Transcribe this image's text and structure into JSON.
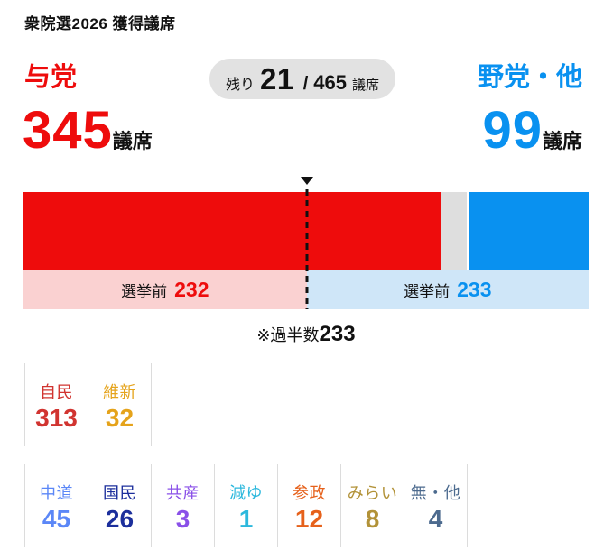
{
  "title": "衆院選2026 獲得議席",
  "header": {
    "ruling": {
      "label": "与党",
      "seats": "345",
      "unit": "議席"
    },
    "remaining": {
      "prefix": "残り",
      "value": "21",
      "separator": "/",
      "total": "465",
      "unit": "議席"
    },
    "opposition": {
      "label": "野党・他",
      "seats": "99",
      "unit": "議席"
    }
  },
  "pre_election": {
    "left": {
      "label": "選挙前",
      "value": "232"
    },
    "right": {
      "label": "選挙前",
      "value": "233"
    }
  },
  "majority_note": {
    "prefix": "※過半数",
    "value": "233"
  },
  "colors": {
    "ruling_red": "#ee0c0c",
    "opposition_blue": "#0991f0",
    "remaining_gray": "#dedede",
    "pill_bg": "#e2e2e2",
    "pre_left_bg": "#fad1d1",
    "pre_right_bg": "#cfe6f8"
  },
  "parties_row1": [
    {
      "name": "自民",
      "seats": "313",
      "color": "#d13430"
    },
    {
      "name": "維新",
      "seats": "32",
      "color": "#e5a31b"
    }
  ],
  "parties_row2": [
    {
      "name": "中道",
      "seats": "45",
      "color": "#5b87f7"
    },
    {
      "name": "国民",
      "seats": "26",
      "color": "#1c2f9c"
    },
    {
      "name": "共産",
      "seats": "3",
      "color": "#8a50e8"
    },
    {
      "name": "減ゆ",
      "seats": "1",
      "color": "#2cb8dd"
    },
    {
      "name": "参政",
      "seats": "12",
      "color": "#e6611b"
    },
    {
      "name": "みらい",
      "seats": "8",
      "color": "#b29238"
    },
    {
      "name": "無・他",
      "seats": "4",
      "color": "#4c6a8e"
    }
  ],
  "chart_data": {
    "type": "bar",
    "orientation": "horizontal-stacked",
    "title": "衆院選2026 獲得議席",
    "total_seats": 465,
    "remaining_seats": 21,
    "majority": 233,
    "segments": [
      {
        "name": "与党",
        "seats": 345,
        "color": "#ee0c0c",
        "pre_election": 232
      },
      {
        "name": "残り",
        "seats": 21,
        "color": "#dedede"
      },
      {
        "name": "野党・他",
        "seats": 99,
        "color": "#0991f0",
        "pre_election": 233
      }
    ],
    "party_breakdown": [
      {
        "name": "自民",
        "seats": 313
      },
      {
        "name": "維新",
        "seats": 32
      },
      {
        "name": "中道",
        "seats": 45
      },
      {
        "name": "国民",
        "seats": 26
      },
      {
        "name": "共産",
        "seats": 3
      },
      {
        "name": "減ゆ",
        "seats": 1
      },
      {
        "name": "参政",
        "seats": 12
      },
      {
        "name": "みらい",
        "seats": 8
      },
      {
        "name": "無・他",
        "seats": 4
      }
    ]
  }
}
